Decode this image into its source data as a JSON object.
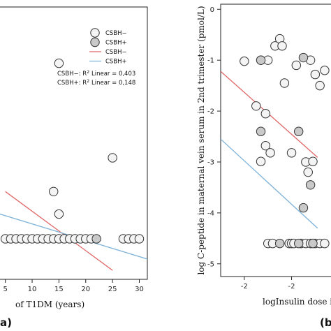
{
  "chart_data": [
    {
      "panel_label": "a)",
      "type": "scatter",
      "xlabel": "of T1DM (years)",
      "xlim": [
        4,
        31.5
      ],
      "ylim": [
        -5.5,
        0.55
      ],
      "x_ticks": [
        5,
        10,
        15,
        20,
        25,
        30
      ],
      "series": [
        {
          "name": "CSBH−",
          "marker": "open",
          "points": [
            {
              "x": 15,
              "y": -0.7
            },
            {
              "x": 25,
              "y": -2.8
            },
            {
              "x": 14,
              "y": -3.55
            },
            {
              "x": 15,
              "y": -4.05
            },
            {
              "x": 5,
              "y": -4.6
            },
            {
              "x": 6,
              "y": -4.6
            },
            {
              "x": 7,
              "y": -4.6
            },
            {
              "x": 8,
              "y": -4.6
            },
            {
              "x": 9,
              "y": -4.6
            },
            {
              "x": 10,
              "y": -4.6
            },
            {
              "x": 11,
              "y": -4.6
            },
            {
              "x": 12,
              "y": -4.6
            },
            {
              "x": 13,
              "y": -4.6
            },
            {
              "x": 14,
              "y": -4.6
            },
            {
              "x": 15,
              "y": -4.6
            },
            {
              "x": 16,
              "y": -4.6
            },
            {
              "x": 17,
              "y": -4.6
            },
            {
              "x": 18,
              "y": -4.6
            },
            {
              "x": 19,
              "y": -4.6
            },
            {
              "x": 20,
              "y": -4.6
            },
            {
              "x": 21,
              "y": -4.6
            },
            {
              "x": 27,
              "y": -4.6
            },
            {
              "x": 28,
              "y": -4.6
            },
            {
              "x": 29,
              "y": -4.6
            },
            {
              "x": 30,
              "y": -4.6
            }
          ]
        },
        {
          "name": "CSBH+",
          "marker": "filled",
          "points": [
            {
              "x": 22,
              "y": -4.6
            }
          ]
        }
      ],
      "fit_lines": [
        {
          "name": "CSBH−",
          "color": "#e06666",
          "x": [
            5,
            25
          ],
          "y": [
            -3.55,
            -5.3
          ]
        },
        {
          "name": "CSBH+",
          "color": "#7fb3d9",
          "x": [
            4,
            31.5
          ],
          "y": [
            -4.05,
            -5.05
          ]
        }
      ],
      "legend": {
        "placement": "top-right",
        "entries": [
          {
            "label": "CSBH−",
            "kind": "open-circle"
          },
          {
            "label": "CSBH+",
            "kind": "filled-circle"
          },
          {
            "label": "CSBH−",
            "kind": "line",
            "color": "#e06666"
          },
          {
            "label": "CSBH+",
            "kind": "line",
            "color": "#7fb3d9"
          }
        ],
        "r2_lines": [
          {
            "prefix": "CSBH−: R",
            "sup": "2",
            "suffix": " Linear = 0,403"
          },
          {
            "prefix": "CSBH+: R",
            "sup": "2",
            "suffix": " Linear = 0,148"
          }
        ]
      }
    },
    {
      "panel_label": "(b",
      "type": "scatter",
      "xlabel": "logInsulin dose i",
      "ylabel": "log C-peptide in maternal vein serum in 2nd trimester (pmol/L)",
      "xlim": [
        -2.1,
        -1.45
      ],
      "ylim": [
        -5.25,
        0.1
      ],
      "y_ticks": [
        0,
        -1,
        -2,
        -3,
        -4,
        -5
      ],
      "x_ticks": [
        -2,
        -2
      ],
      "x_tick_positions": [
        -2.0,
        -1.8
      ],
      "series": [
        {
          "name": "CSBH−",
          "marker": "open",
          "points": [
            {
              "x": -2.0,
              "y": -1.02
            },
            {
              "x": -1.93,
              "y": -1.0
            },
            {
              "x": -1.9,
              "y": -1.0
            },
            {
              "x": -1.87,
              "y": -0.72
            },
            {
              "x": -1.85,
              "y": -0.58
            },
            {
              "x": -1.84,
              "y": -0.72
            },
            {
              "x": -1.78,
              "y": -1.1
            },
            {
              "x": -1.72,
              "y": -1.0
            },
            {
              "x": -1.7,
              "y": -1.28
            },
            {
              "x": -1.66,
              "y": -1.2
            },
            {
              "x": -1.68,
              "y": -1.5
            },
            {
              "x": -1.83,
              "y": -1.45
            },
            {
              "x": -1.95,
              "y": -1.9
            },
            {
              "x": -1.91,
              "y": -2.05
            },
            {
              "x": -1.91,
              "y": -2.68
            },
            {
              "x": -1.89,
              "y": -2.82
            },
            {
              "x": -1.8,
              "y": -2.82
            },
            {
              "x": -1.93,
              "y": -2.99
            },
            {
              "x": -1.74,
              "y": -3.0
            },
            {
              "x": -1.71,
              "y": -2.99
            },
            {
              "x": -1.73,
              "y": -3.2
            },
            {
              "x": -1.9,
              "y": -4.6
            },
            {
              "x": -1.88,
              "y": -4.6
            },
            {
              "x": -1.81,
              "y": -4.6
            },
            {
              "x": -1.8,
              "y": -4.6
            },
            {
              "x": -1.79,
              "y": -4.6
            },
            {
              "x": -1.76,
              "y": -4.6
            },
            {
              "x": -1.74,
              "y": -4.6
            },
            {
              "x": -1.72,
              "y": -4.6
            },
            {
              "x": -1.7,
              "y": -4.6
            },
            {
              "x": -1.68,
              "y": -4.6
            },
            {
              "x": -1.66,
              "y": -4.6
            }
          ]
        },
        {
          "name": "CSBH+",
          "marker": "filled",
          "points": [
            {
              "x": -1.93,
              "y": -1.0
            },
            {
              "x": -1.75,
              "y": -0.95
            },
            {
              "x": -1.77,
              "y": -2.4
            },
            {
              "x": -1.93,
              "y": -2.4
            },
            {
              "x": -1.75,
              "y": -3.9
            },
            {
              "x": -1.72,
              "y": -3.45
            },
            {
              "x": -1.85,
              "y": -4.6
            },
            {
              "x": -1.77,
              "y": -4.6
            },
            {
              "x": -1.71,
              "y": -4.6
            }
          ]
        }
      ],
      "fit_lines": [
        {
          "name": "CSBH−",
          "color": "#e06666",
          "x": [
            -2.1,
            -1.69
          ],
          "y": [
            -1.22,
            -2.91
          ]
        },
        {
          "name": "CSBH+",
          "color": "#7fb3d9",
          "x": [
            -2.1,
            -1.69
          ],
          "y": [
            -2.55,
            -4.3
          ]
        }
      ]
    }
  ]
}
